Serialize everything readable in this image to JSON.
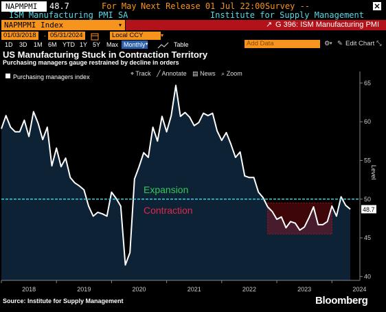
{
  "header": {
    "ticker": "NAPMPMI",
    "value": "48.7",
    "period_label": "For May",
    "next_release_label": "Next Release 01 Jul 22:00",
    "survey_label": "Survey --",
    "series_name": "ISM Manufacturing PMI SA",
    "source_name": "Institute for Supply Management"
  },
  "command_bar": {
    "security": "NAPMPMI Index",
    "function_label": "G 396: ISM Manufacturing PMI"
  },
  "toolbar": {
    "start_date": "01/03/2018",
    "end_date": "05/31/2024",
    "currency": "Local CCY",
    "add_data_placeholder": "Add Data",
    "edit_chart": "Edit Chart",
    "ranges": [
      "1D",
      "3D",
      "1M",
      "6M",
      "YTD",
      "1Y",
      "5Y",
      "Max",
      "Monthly"
    ],
    "table_label": "Table"
  },
  "chart_tools": [
    "Track",
    "Annotate",
    "News",
    "Zoom"
  ],
  "title": "US Manufacturing Stuck in Contraction Territory",
  "subtitle": "Purchasing managers gauge restrained by decline in orders",
  "chart_data": {
    "type": "line",
    "series": [
      {
        "name": "Purchasing managers index",
        "color": "#ffffff",
        "x": [
          "2018-01",
          "2018-02",
          "2018-03",
          "2018-04",
          "2018-05",
          "2018-06",
          "2018-07",
          "2018-08",
          "2018-09",
          "2018-10",
          "2018-11",
          "2018-12",
          "2019-01",
          "2019-02",
          "2019-03",
          "2019-04",
          "2019-05",
          "2019-06",
          "2019-07",
          "2019-08",
          "2019-09",
          "2019-10",
          "2019-11",
          "2019-12",
          "2020-01",
          "2020-02",
          "2020-03",
          "2020-04",
          "2020-05",
          "2020-06",
          "2020-07",
          "2020-08",
          "2020-09",
          "2020-10",
          "2020-11",
          "2020-12",
          "2021-01",
          "2021-02",
          "2021-03",
          "2021-04",
          "2021-05",
          "2021-06",
          "2021-07",
          "2021-08",
          "2021-09",
          "2021-10",
          "2021-11",
          "2021-12",
          "2022-01",
          "2022-02",
          "2022-03",
          "2022-04",
          "2022-05",
          "2022-06",
          "2022-07",
          "2022-08",
          "2022-09",
          "2022-10",
          "2022-11",
          "2022-12",
          "2023-01",
          "2023-02",
          "2023-03",
          "2023-04",
          "2023-05",
          "2023-06",
          "2023-07",
          "2023-08",
          "2023-09",
          "2023-10",
          "2023-11",
          "2023-12",
          "2024-01",
          "2024-02",
          "2024-03",
          "2024-04",
          "2024-05"
        ],
        "values": [
          59.1,
          60.8,
          59.3,
          58.7,
          58.7,
          60.2,
          58.1,
          61.3,
          59.8,
          57.7,
          59.3,
          54.3,
          56.6,
          54.2,
          55.3,
          52.8,
          52.1,
          51.7,
          51.2,
          49.1,
          47.8,
          48.3,
          48.1,
          47.8,
          50.9,
          50.1,
          49.1,
          41.5,
          43.1,
          52.6,
          54.2,
          56.0,
          55.4,
          59.3,
          57.5,
          60.7,
          58.7,
          60.8,
          64.7,
          60.7,
          61.2,
          60.6,
          59.5,
          59.9,
          61.1,
          60.8,
          61.1,
          58.8,
          57.6,
          58.6,
          57.1,
          55.4,
          56.1,
          53.0,
          52.8,
          52.8,
          50.9,
          50.2,
          49.0,
          48.4,
          47.4,
          47.7,
          46.3,
          47.1,
          46.9,
          46.0,
          46.4,
          47.6,
          49.0,
          46.7,
          46.7,
          47.1,
          49.1,
          47.8,
          50.3,
          49.2,
          48.7
        ]
      }
    ],
    "reference_line": 50,
    "annotations": [
      "Expansion",
      "Contraction"
    ],
    "highlight_region": {
      "x_start": "2022-11",
      "x_end": "2024-01",
      "y_low": 45.5,
      "y_high": 49.5
    },
    "last_value_label": "48.7",
    "x_tick_labels": [
      "2018",
      "2019",
      "2020",
      "2021",
      "2022",
      "2023",
      "2024"
    ],
    "y_ticks": [
      40,
      45,
      50,
      55,
      60,
      65
    ],
    "ylim": [
      39.5,
      66.5
    ],
    "ylabel": "Level",
    "colors": {
      "area": "#0e2236",
      "reference": "#34d0d8",
      "expansion": "#35c759",
      "contraction": "#e0274e",
      "region": "#b3121a"
    }
  },
  "source": "Source: Institute for Supply Management",
  "brand": "Bloomberg"
}
